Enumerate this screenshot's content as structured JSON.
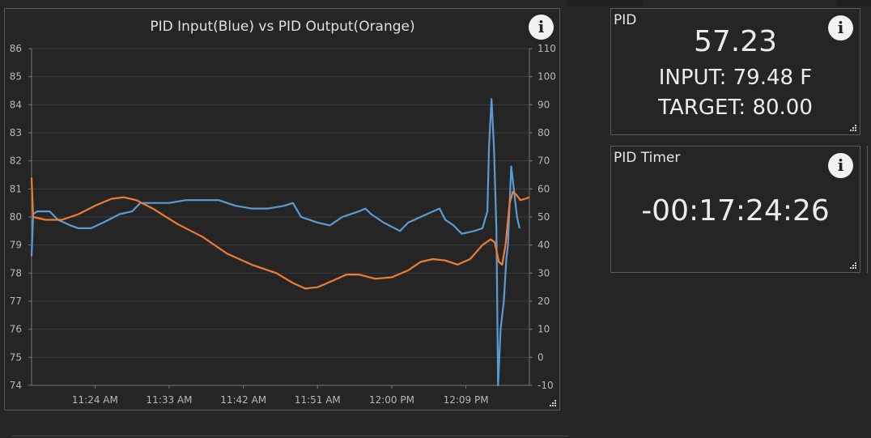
{
  "chart_panel": {
    "info_icon": "info-icon",
    "grip_icon": "resize-grip-icon"
  },
  "chart_data": {
    "type": "line",
    "title": "PID Input(Blue) vs PID Output(Orange)",
    "x_tick_labels": [
      "11:24 AM",
      "11:33 AM",
      "11:42 AM",
      "11:51 AM",
      "12:00 PM",
      "12:09 PM"
    ],
    "x_tick_minutes": [
      24,
      33,
      42,
      51,
      60,
      69
    ],
    "x_range_minutes": [
      16.3,
      76.7
    ],
    "y_left": {
      "ticks": [
        74,
        75,
        76,
        77,
        78,
        79,
        80,
        81,
        82,
        83,
        84,
        85,
        86
      ],
      "range": [
        74,
        86
      ]
    },
    "y_right": {
      "ticks": [
        -10,
        0,
        10,
        20,
        30,
        40,
        50,
        60,
        70,
        80,
        90,
        100,
        110
      ],
      "range": [
        -10,
        110
      ]
    },
    "grid": true,
    "series": [
      {
        "name": "PID Input",
        "color": "#5b9bd5",
        "axis": "left",
        "points": [
          [
            16.3,
            78.6
          ],
          [
            16.5,
            80.1
          ],
          [
            17,
            80.2
          ],
          [
            18.5,
            80.2
          ],
          [
            19.5,
            79.9
          ],
          [
            21,
            79.7
          ],
          [
            22,
            79.6
          ],
          [
            23.5,
            79.6
          ],
          [
            25,
            79.8
          ],
          [
            27,
            80.1
          ],
          [
            28.5,
            80.2
          ],
          [
            29.5,
            80.5
          ],
          [
            33,
            80.5
          ],
          [
            35,
            80.6
          ],
          [
            39,
            80.6
          ],
          [
            41,
            80.4
          ],
          [
            43,
            80.3
          ],
          [
            45,
            80.3
          ],
          [
            47,
            80.4
          ],
          [
            48,
            80.5
          ],
          [
            49,
            80.0
          ],
          [
            51,
            79.8
          ],
          [
            52.5,
            79.7
          ],
          [
            54,
            80.0
          ],
          [
            56,
            80.2
          ],
          [
            56.8,
            80.3
          ],
          [
            57.5,
            80.1
          ],
          [
            59,
            79.8
          ],
          [
            61,
            79.5
          ],
          [
            62,
            79.8
          ],
          [
            63.5,
            80.0
          ],
          [
            65,
            80.2
          ],
          [
            65.8,
            80.3
          ],
          [
            66.5,
            79.9
          ],
          [
            67.5,
            79.7
          ],
          [
            68.5,
            79.4
          ],
          [
            70,
            79.5
          ],
          [
            71,
            79.6
          ],
          [
            71.6,
            80.2
          ],
          [
            71.8,
            82.5
          ],
          [
            72.1,
            84.2
          ],
          [
            72.4,
            82.5
          ],
          [
            72.7,
            79.5
          ],
          [
            72.9,
            74.0
          ],
          [
            73.2,
            76.0
          ],
          [
            73.6,
            77.0
          ],
          [
            73.9,
            78.5
          ],
          [
            74.1,
            79.0
          ],
          [
            74.3,
            80.5
          ],
          [
            74.5,
            81.8
          ],
          [
            74.8,
            81.0
          ],
          [
            75.2,
            80.0
          ],
          [
            75.5,
            79.6
          ]
        ]
      },
      {
        "name": "PID Output",
        "color": "#ed7d31",
        "axis": "right",
        "points": [
          [
            16.3,
            64
          ],
          [
            16.5,
            50
          ],
          [
            18,
            49
          ],
          [
            20,
            49
          ],
          [
            22,
            51
          ],
          [
            24,
            54
          ],
          [
            26,
            56.5
          ],
          [
            27.5,
            57
          ],
          [
            29,
            56
          ],
          [
            31,
            53
          ],
          [
            34,
            47.5
          ],
          [
            37,
            43
          ],
          [
            40,
            37
          ],
          [
            43,
            33
          ],
          [
            46,
            30
          ],
          [
            48,
            26.5
          ],
          [
            49.5,
            24.5
          ],
          [
            51,
            25
          ],
          [
            53,
            27.5
          ],
          [
            54.5,
            29.5
          ],
          [
            56,
            29.5
          ],
          [
            58,
            28
          ],
          [
            60,
            28.5
          ],
          [
            62,
            31
          ],
          [
            63.5,
            34
          ],
          [
            65,
            35
          ],
          [
            66.5,
            34.5
          ],
          [
            68,
            33
          ],
          [
            69.5,
            35
          ],
          [
            71,
            40
          ],
          [
            72,
            42
          ],
          [
            72.5,
            41
          ],
          [
            73,
            34
          ],
          [
            73.4,
            33
          ],
          [
            73.8,
            40
          ],
          [
            74.3,
            55
          ],
          [
            74.7,
            59
          ],
          [
            75.1,
            58
          ],
          [
            75.6,
            56
          ],
          [
            76.2,
            56.5
          ],
          [
            76.7,
            57
          ]
        ]
      }
    ]
  },
  "pid": {
    "title": "PID",
    "value": "57.23",
    "input": "INPUT: 79.48 F",
    "target": "TARGET: 80.00"
  },
  "timer": {
    "title": "PID Timer",
    "value": "-00:17:24:26"
  }
}
